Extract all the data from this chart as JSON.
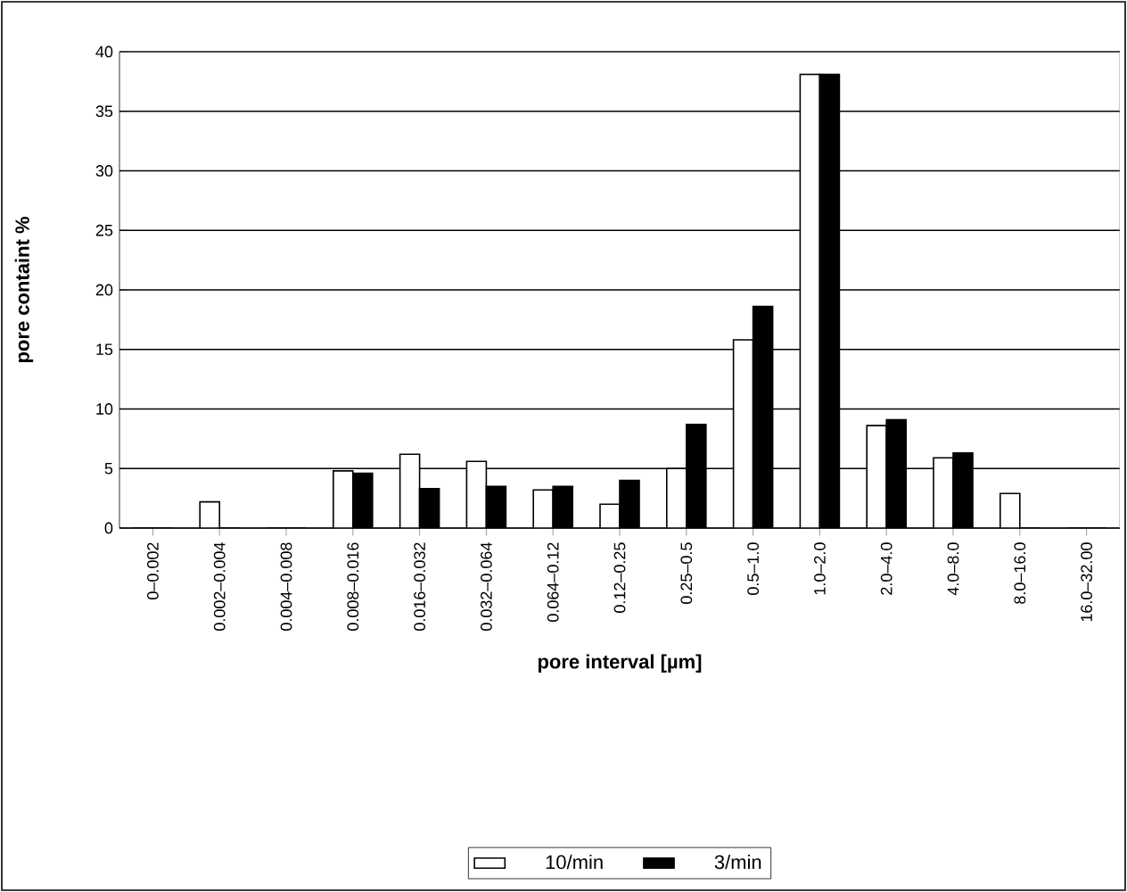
{
  "chart_data": {
    "type": "bar",
    "xlabel": "pore interval  [µm]",
    "ylabel": "pore containt %",
    "categories": [
      "0–0.002",
      "0.002–0.004",
      "0.004–0.008",
      "0.008–0.016",
      "0.016–0.032",
      "0.032–0.064",
      "0.064–0.12",
      "0.12–0.25",
      "0.25–0.5",
      "0.5–1.0",
      "1.0–2.0",
      "2.0–4.0",
      "4.0–8.0",
      "8.0–16.0",
      "16.0–32.00"
    ],
    "series": [
      {
        "name": "10/min",
        "color": "#ffffff",
        "values": [
          0,
          2.2,
          0,
          4.8,
          6.2,
          5.6,
          3.2,
          2.0,
          5.0,
          15.8,
          38.1,
          8.6,
          5.9,
          2.9,
          0
        ]
      },
      {
        "name": "3/min",
        "color": "#000000",
        "values": [
          0,
          0,
          0,
          4.6,
          3.3,
          3.5,
          3.5,
          4.0,
          8.7,
          18.6,
          38.1,
          9.1,
          6.3,
          0,
          0
        ]
      }
    ],
    "ylim": [
      0,
      40
    ],
    "yticks": [
      0,
      5,
      10,
      15,
      20,
      25,
      30,
      35,
      40
    ],
    "grid": "y",
    "legend": "bottom"
  }
}
